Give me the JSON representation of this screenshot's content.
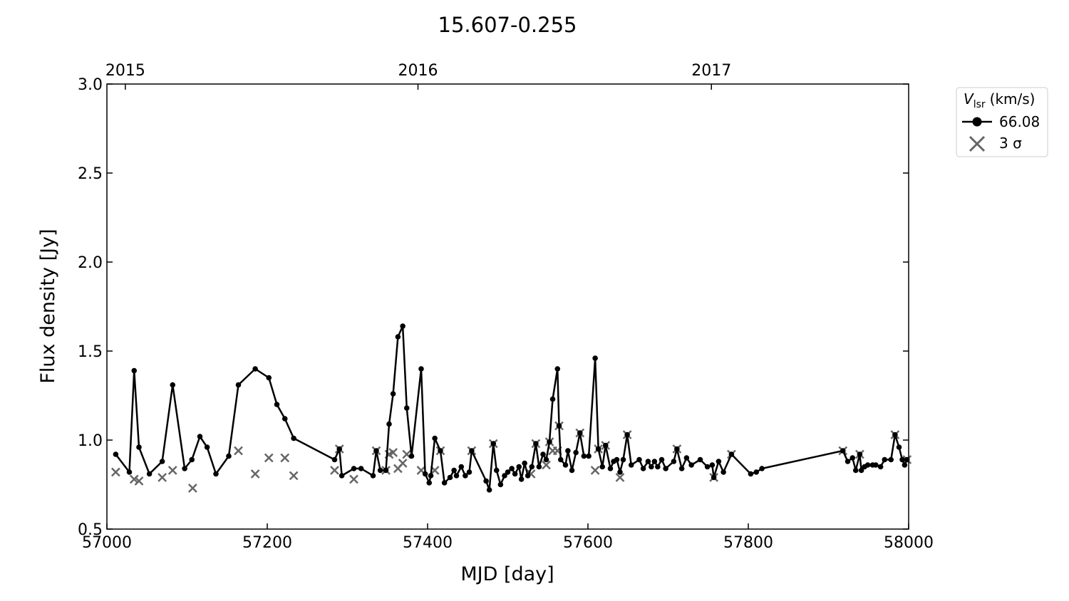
{
  "chart_data": {
    "type": "line",
    "title": "15.607-0.255",
    "xlabel": "MJD [day]",
    "ylabel": "Flux density [Jy]",
    "legend_title": {
      "symbol": "V",
      "subscript": "lsr",
      "unit": "(km/s)"
    },
    "legend_position": "outside upper right",
    "xlim": [
      57000,
      58000
    ],
    "xticks": [
      57000,
      57200,
      57400,
      57600,
      57800,
      58000
    ],
    "x2ticks": [
      {
        "value": 57023,
        "label": "2015"
      },
      {
        "value": 57388,
        "label": "2016"
      },
      {
        "value": 57754,
        "label": "2017"
      }
    ],
    "ylim": [
      0.5,
      3.0
    ],
    "yticks": [
      {
        "value": 0.5,
        "label": "0.5"
      },
      {
        "value": 1.0,
        "label": "1.0"
      },
      {
        "value": 1.5,
        "label": "1.5"
      },
      {
        "value": 2.0,
        "label": "2.0"
      },
      {
        "value": 2.5,
        "label": "2.5"
      },
      {
        "value": 3.0,
        "label": "3.0"
      }
    ],
    "grid": false,
    "series": [
      {
        "name": "66.08",
        "color": "#000000",
        "marker": "o",
        "x": [
          57011,
          57028,
          57034,
          57040,
          57053,
          57069,
          57082,
          57097,
          57106,
          57116,
          57125,
          57136,
          57152,
          57164,
          57185,
          57202,
          57212,
          57222,
          57233,
          57284,
          57290,
          57293,
          57308,
          57317,
          57332,
          57336,
          57341,
          57348,
          57352,
          57357,
          57363,
          57369,
          57374,
          57380,
          57392,
          57397,
          57402,
          57404,
          57409,
          57416,
          57421,
          57428,
          57433,
          57436,
          57442,
          57447,
          57452,
          57455,
          57473,
          57477,
          57482,
          57486,
          57491,
          57496,
          57500,
          57505,
          57509,
          57514,
          57517,
          57521,
          57525,
          57530,
          57535,
          57539,
          57544,
          57548,
          57552,
          57556,
          57562,
          57564,
          57566,
          57572,
          57575,
          57580,
          57585,
          57590,
          57595,
          57601,
          57609,
          57613,
          57618,
          57622,
          57628,
          57632,
          57636,
          57640,
          57644,
          57649,
          57654,
          57664,
          57669,
          57675,
          57679,
          57683,
          57687,
          57692,
          57697,
          57707,
          57711,
          57717,
          57723,
          57729,
          57740,
          57749,
          57755,
          57757,
          57763,
          57769,
          57779,
          57803,
          57810,
          57817,
          57918,
          57924,
          57930,
          57934,
          57939,
          57941,
          57945,
          57949,
          57955,
          57959,
          57965,
          57970,
          57978,
          57983,
          57988,
          57992,
          57995,
          57998
        ],
        "values": [
          0.92,
          0.82,
          1.39,
          0.96,
          0.81,
          0.88,
          1.31,
          0.84,
          0.89,
          1.02,
          0.96,
          0.81,
          0.91,
          1.31,
          1.4,
          1.35,
          1.2,
          1.12,
          1.01,
          0.89,
          0.95,
          0.8,
          0.84,
          0.84,
          0.8,
          0.94,
          0.83,
          0.83,
          1.09,
          1.26,
          1.58,
          1.64,
          1.18,
          0.91,
          1.4,
          0.81,
          0.76,
          0.8,
          1.01,
          0.94,
          0.76,
          0.79,
          0.83,
          0.8,
          0.85,
          0.8,
          0.82,
          0.94,
          0.77,
          0.72,
          0.98,
          0.83,
          0.75,
          0.8,
          0.82,
          0.84,
          0.81,
          0.85,
          0.78,
          0.87,
          0.8,
          0.85,
          0.98,
          0.85,
          0.92,
          0.89,
          0.99,
          1.23,
          1.4,
          1.08,
          0.89,
          0.86,
          0.94,
          0.83,
          0.93,
          1.04,
          0.91,
          0.91,
          1.46,
          0.95,
          0.85,
          0.97,
          0.84,
          0.88,
          0.89,
          0.82,
          0.89,
          1.03,
          0.86,
          0.89,
          0.84,
          0.88,
          0.85,
          0.88,
          0.85,
          0.89,
          0.84,
          0.88,
          0.95,
          0.84,
          0.9,
          0.86,
          0.89,
          0.85,
          0.86,
          0.79,
          0.88,
          0.82,
          0.92,
          0.81,
          0.82,
          0.84,
          0.94,
          0.88,
          0.9,
          0.83,
          0.92,
          0.83,
          0.85,
          0.86,
          0.86,
          0.86,
          0.85,
          0.89,
          0.89,
          1.03,
          0.96,
          0.89,
          0.86,
          0.89
        ]
      },
      {
        "name": "3 σ",
        "color": "#666666",
        "marker": "x",
        "x": [
          57011,
          57034,
          57040,
          57069,
          57082,
          57107,
          57164,
          57185,
          57202,
          57222,
          57233,
          57284,
          57290,
          57308,
          57336,
          57348,
          57352,
          57357,
          57363,
          57369,
          57374,
          57392,
          57409,
          57416,
          57455,
          57482,
          57529,
          57535,
          57548,
          57552,
          57556,
          57562,
          57564,
          57590,
          57609,
          57613,
          57622,
          57640,
          57649,
          57711,
          57757,
          57779,
          57918,
          57939,
          57983,
          57998
        ],
        "values": [
          0.82,
          0.78,
          0.77,
          0.79,
          0.83,
          0.73,
          0.94,
          0.81,
          0.9,
          0.9,
          0.8,
          0.83,
          0.95,
          0.78,
          0.94,
          0.83,
          0.92,
          0.93,
          0.84,
          0.87,
          0.92,
          0.83,
          0.83,
          0.94,
          0.94,
          0.98,
          0.81,
          0.98,
          0.86,
          0.99,
          0.94,
          0.94,
          1.08,
          1.04,
          0.83,
          0.95,
          0.97,
          0.79,
          1.03,
          0.95,
          0.79,
          0.92,
          0.94,
          0.92,
          1.03,
          0.89
        ]
      }
    ]
  }
}
